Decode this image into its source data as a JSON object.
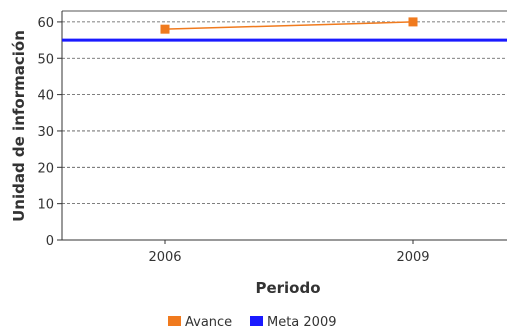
{
  "chart_data": {
    "type": "line",
    "title": "",
    "xlabel": "Periodo",
    "ylabel": "Unidad de información",
    "categories": [
      "2006",
      "2009"
    ],
    "ylim": [
      0,
      63
    ],
    "yticks": [
      0,
      10,
      20,
      30,
      40,
      50,
      60
    ],
    "grid": true,
    "legend_position": "bottom",
    "series": [
      {
        "name": "Avance",
        "values": [
          58,
          60
        ],
        "color": "#f07a1e",
        "marker": "square"
      },
      {
        "name": "Meta 2009",
        "values": [
          55,
          55
        ],
        "color": "#1a1aff",
        "style": "reference-line"
      }
    ]
  }
}
